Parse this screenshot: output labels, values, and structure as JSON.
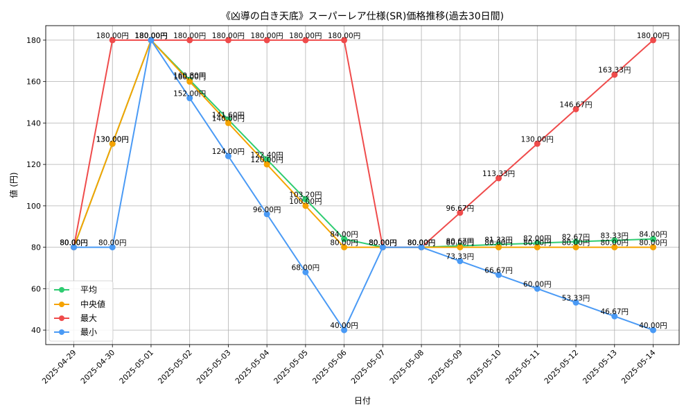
{
  "chart_data": {
    "type": "line",
    "title": "《凶導の白き天底》スーパーレア仕様(SR)価格推移(過去30日間)",
    "xlabel": "日付",
    "ylabel": "値 (円)",
    "ylim": [
      33,
      187
    ],
    "yticks": [
      40,
      60,
      80,
      100,
      120,
      140,
      160,
      180
    ],
    "grid": true,
    "legend_position": "lower-left",
    "value_suffix": "円",
    "categories": [
      "2025-04-29",
      "2025-04-30",
      "2025-05-01",
      "2025-05-02",
      "2025-05-03",
      "2025-05-04",
      "2025-05-05",
      "2025-05-06",
      "2025-05-07",
      "2025-05-08",
      "2025-05-09",
      "2025-05-10",
      "2025-05-11",
      "2025-05-12",
      "2025-05-13",
      "2025-05-14"
    ],
    "series": [
      {
        "name": "平均",
        "color": "#2ecc71",
        "values": [
          80,
          130,
          180,
          160.8,
          141.6,
          122.4,
          103.2,
          84,
          80,
          80,
          80.67,
          81.33,
          82,
          82.67,
          83.33,
          84
        ]
      },
      {
        "name": "中央値",
        "color": "#f5a300",
        "values": [
          80,
          130,
          180,
          160,
          140,
          120,
          100,
          80,
          80,
          80,
          80,
          80,
          80,
          80,
          80,
          80
        ]
      },
      {
        "name": "最大",
        "color": "#ef4b4b",
        "values": [
          80,
          180,
          180,
          180,
          180,
          180,
          180,
          180,
          80,
          80,
          96.67,
          113.33,
          130,
          146.67,
          163.33,
          180
        ]
      },
      {
        "name": "最小",
        "color": "#4a9af5",
        "values": [
          80,
          80,
          180,
          152,
          124,
          96,
          68,
          40,
          80,
          80,
          73.33,
          66.67,
          60,
          53.33,
          46.67,
          40
        ]
      }
    ]
  }
}
